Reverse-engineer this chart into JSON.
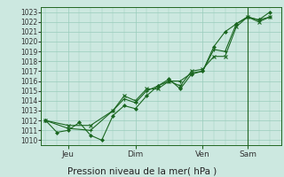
{
  "title": "Pression niveau de la mer( hPa )",
  "ylabel_ticks": [
    1010,
    1011,
    1012,
    1013,
    1014,
    1015,
    1016,
    1017,
    1018,
    1019,
    1020,
    1021,
    1022,
    1023
  ],
  "ylim": [
    1009.5,
    1023.5
  ],
  "x_tick_labels": [
    "Jeu",
    "Dim",
    "Ven",
    "Sam"
  ],
  "x_tick_positions": [
    1,
    4,
    7,
    9
  ],
  "xlim": [
    -0.2,
    10.5
  ],
  "bg_color": "#cce8e0",
  "grid_color": "#99ccbb",
  "line_color": "#1a6620",
  "marker_color": "#1a6620",
  "series1_x": [
    0,
    0.5,
    1.0,
    1.5,
    2.0,
    2.5,
    3.0,
    3.5,
    4.0,
    4.5,
    5.0,
    5.5,
    6.0,
    6.5,
    7.0,
    7.5,
    8.0,
    8.5,
    9.0,
    9.5,
    10.0
  ],
  "series1_y": [
    1012.0,
    1010.8,
    1011.0,
    1011.8,
    1010.5,
    1010.0,
    1012.5,
    1013.5,
    1013.2,
    1014.5,
    1015.5,
    1016.2,
    1015.2,
    1016.7,
    1017.0,
    1019.5,
    1021.0,
    1021.8,
    1022.5,
    1022.2,
    1023.0
  ],
  "series2_x": [
    0,
    1.0,
    2.0,
    3.0,
    3.5,
    4.0,
    4.5,
    5.0,
    5.5,
    6.0,
    6.5,
    7.0,
    7.5,
    8.0,
    8.5,
    9.0,
    9.5,
    10.0
  ],
  "series2_y": [
    1012.0,
    1011.2,
    1011.0,
    1013.0,
    1014.2,
    1013.8,
    1015.0,
    1015.5,
    1016.0,
    1016.0,
    1016.8,
    1017.0,
    1019.2,
    1019.0,
    1021.8,
    1022.5,
    1022.2,
    1022.5
  ],
  "series3_x": [
    0,
    1.0,
    2.0,
    3.0,
    3.5,
    4.0,
    4.5,
    5.0,
    5.5,
    6.0,
    6.5,
    7.0,
    7.5,
    8.0,
    8.5,
    9.0,
    9.5,
    10.0
  ],
  "series3_y": [
    1012.0,
    1011.5,
    1011.5,
    1013.0,
    1014.5,
    1014.0,
    1015.2,
    1015.2,
    1016.0,
    1015.5,
    1017.0,
    1017.2,
    1018.5,
    1018.5,
    1021.5,
    1022.5,
    1022.0,
    1022.5
  ],
  "vline_x": [
    9.0
  ],
  "vline_color": "#226622",
  "figsize": [
    3.2,
    2.0
  ],
  "dpi": 100
}
